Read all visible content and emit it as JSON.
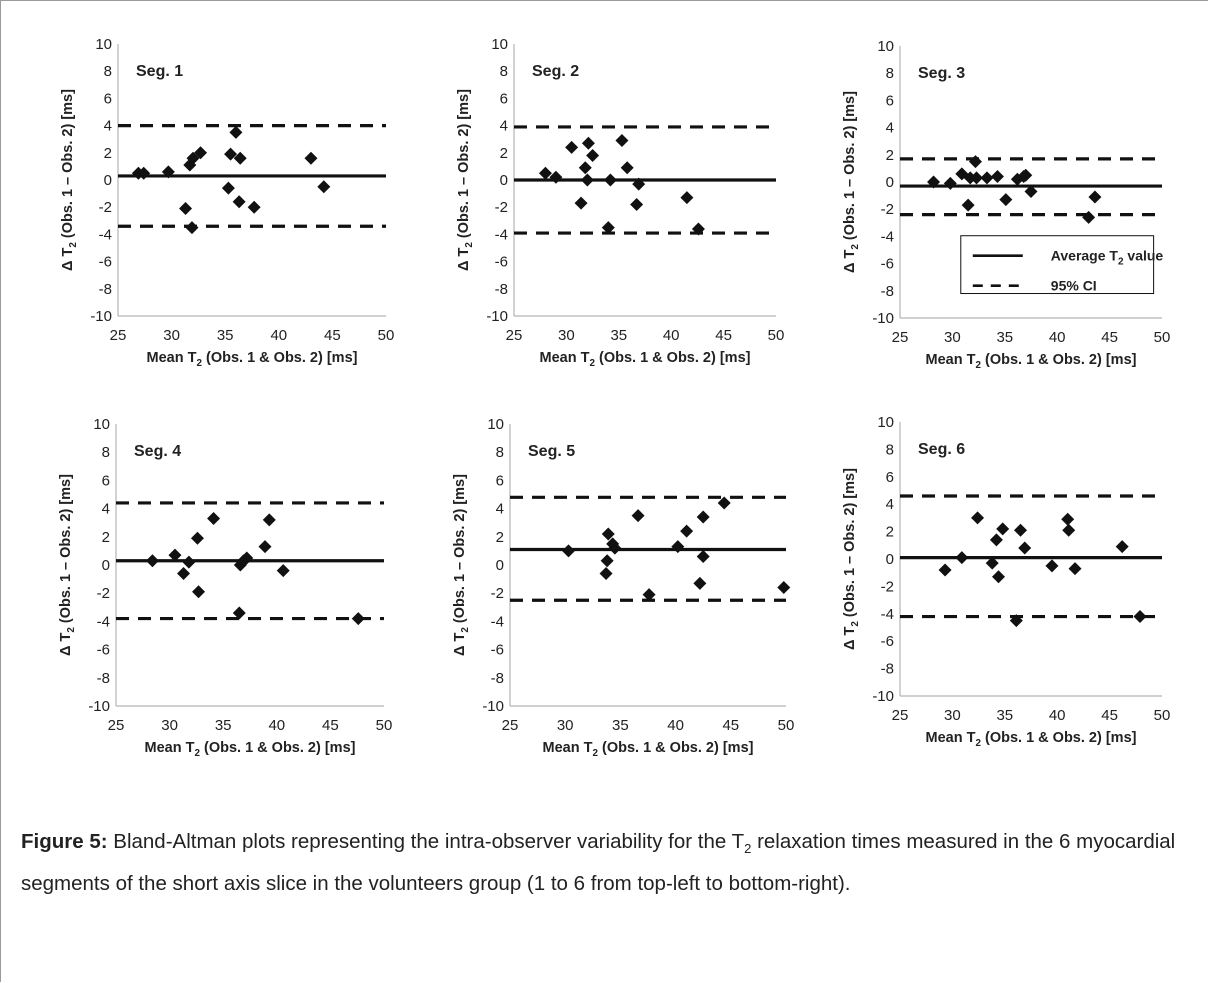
{
  "figure": {
    "caption_label": "Figure 5:",
    "caption_part1": " Bland-Altman plots representing the intra-observer variability for the T",
    "caption_sub": "2",
    "caption_part2": " relaxation times measured in the 6 myocardial segments of the short axis slice in the volunteers group (1 to 6 from top-left to bottom-right)."
  },
  "legend": {
    "items": [
      {
        "label": "Average T",
        "sub": "2",
        "suffix": " value",
        "style": "solid"
      },
      {
        "label": "95% CI",
        "sub": "",
        "suffix": "",
        "style": "dashed"
      }
    ]
  },
  "chart_data": [
    {
      "type": "scatter",
      "title": "Seg. 1",
      "xlabel": "Mean T2 (Obs. 1 & Obs. 2) [ms]",
      "ylabel": "Δ T2 (Obs. 1 – Obs. 2) [ms]",
      "xlim": [
        25,
        50
      ],
      "ylim": [
        -10,
        10
      ],
      "xticks": [
        25,
        30,
        35,
        40,
        45,
        50
      ],
      "yticks": [
        -10,
        -8,
        -6,
        -4,
        -2,
        0,
        2,
        4,
        6,
        8,
        10
      ],
      "mean_line": 0.3,
      "ci_upper": 4.0,
      "ci_lower": -3.4,
      "points": [
        [
          26.9,
          0.5
        ],
        [
          27.4,
          0.5
        ],
        [
          29.7,
          0.6
        ],
        [
          31.3,
          -2.1
        ],
        [
          31.7,
          1.1
        ],
        [
          32.0,
          1.6
        ],
        [
          31.9,
          -3.5
        ],
        [
          32.7,
          2.0
        ],
        [
          35.3,
          -0.6
        ],
        [
          35.5,
          1.9
        ],
        [
          36.0,
          3.5
        ],
        [
          36.3,
          -1.6
        ],
        [
          36.4,
          1.6
        ],
        [
          37.7,
          -2.0
        ],
        [
          43.0,
          1.6
        ],
        [
          44.2,
          -0.5
        ]
      ]
    },
    {
      "type": "scatter",
      "title": "Seg. 2",
      "xlabel": "Mean T2 (Obs. 1 & Obs. 2) [ms]",
      "ylabel": "Δ T2 (Obs. 1 – Obs. 2) [ms]",
      "xlim": [
        25,
        50
      ],
      "ylim": [
        -10,
        10
      ],
      "xticks": [
        25,
        30,
        35,
        40,
        45,
        50
      ],
      "yticks": [
        -10,
        -8,
        -6,
        -4,
        -2,
        0,
        2,
        4,
        6,
        8,
        10
      ],
      "mean_line": 0.0,
      "ci_upper": 3.9,
      "ci_lower": -3.9,
      "points": [
        [
          28.0,
          0.5
        ],
        [
          29.0,
          0.2
        ],
        [
          30.5,
          2.4
        ],
        [
          31.4,
          -1.7
        ],
        [
          31.8,
          0.9
        ],
        [
          32.0,
          0.0
        ],
        [
          32.1,
          2.7
        ],
        [
          32.5,
          1.8
        ],
        [
          34.0,
          -3.5
        ],
        [
          34.2,
          0.0
        ],
        [
          35.3,
          2.9
        ],
        [
          35.8,
          0.9
        ],
        [
          36.7,
          -1.8
        ],
        [
          36.9,
          -0.3
        ],
        [
          41.5,
          -1.3
        ],
        [
          42.6,
          -3.6
        ]
      ]
    },
    {
      "type": "scatter",
      "title": "Seg. 3",
      "xlabel": "Mean T2 (Obs. 1 & Obs. 2) [ms]",
      "ylabel": "Δ T2 (Obs. 1 – Obs. 2) [ms]",
      "xlim": [
        25,
        50
      ],
      "ylim": [
        -10,
        10
      ],
      "xticks": [
        25,
        30,
        35,
        40,
        45,
        50
      ],
      "yticks": [
        -10,
        -8,
        -6,
        -4,
        -2,
        0,
        2,
        4,
        6,
        8,
        10
      ],
      "mean_line": -0.3,
      "ci_upper": 1.7,
      "ci_lower": -2.4,
      "points": [
        [
          28.2,
          0.0
        ],
        [
          29.8,
          -0.1
        ],
        [
          30.9,
          0.6
        ],
        [
          31.5,
          -1.7
        ],
        [
          31.7,
          0.3
        ],
        [
          32.2,
          1.5
        ],
        [
          32.3,
          0.3
        ],
        [
          33.3,
          0.3
        ],
        [
          34.3,
          0.4
        ],
        [
          35.1,
          -1.3
        ],
        [
          36.2,
          0.2
        ],
        [
          36.8,
          0.4
        ],
        [
          37.0,
          0.5
        ],
        [
          37.5,
          -0.7
        ],
        [
          43.0,
          -2.6
        ],
        [
          43.6,
          -1.1
        ]
      ]
    },
    {
      "type": "scatter",
      "title": "Seg. 4",
      "xlabel": "Mean T2 (Obs. 1 & Obs. 2) [ms]",
      "ylabel": "Δ T2 (Obs. 1 – Obs. 2) [ms]",
      "xlim": [
        25,
        50
      ],
      "ylim": [
        -10,
        10
      ],
      "xticks": [
        25,
        30,
        35,
        40,
        45,
        50
      ],
      "yticks": [
        -10,
        -8,
        -6,
        -4,
        -2,
        0,
        2,
        4,
        6,
        8,
        10
      ],
      "mean_line": 0.3,
      "ci_upper": 4.4,
      "ci_lower": -3.8,
      "points": [
        [
          28.4,
          0.3
        ],
        [
          30.5,
          0.7
        ],
        [
          31.3,
          -0.6
        ],
        [
          31.8,
          0.2
        ],
        [
          32.6,
          1.9
        ],
        [
          32.7,
          -1.9
        ],
        [
          34.1,
          3.3
        ],
        [
          36.5,
          -3.4
        ],
        [
          36.6,
          0.0
        ],
        [
          36.9,
          0.3
        ],
        [
          37.2,
          0.5
        ],
        [
          38.9,
          1.3
        ],
        [
          39.3,
          3.2
        ],
        [
          40.6,
          -0.4
        ],
        [
          47.6,
          -3.8
        ]
      ]
    },
    {
      "type": "scatter",
      "title": "Seg. 5",
      "xlabel": "Mean T2 (Obs. 1 & Obs. 2) [ms]",
      "ylabel": "Δ T2 (Obs. 1 – Obs. 2) [ms]",
      "xlim": [
        25,
        50
      ],
      "ylim": [
        -10,
        10
      ],
      "xticks": [
        25,
        30,
        35,
        40,
        45,
        50
      ],
      "yticks": [
        -10,
        -8,
        -6,
        -4,
        -2,
        0,
        2,
        4,
        6,
        8,
        10
      ],
      "mean_line": 1.1,
      "ci_upper": 4.8,
      "ci_lower": -2.5,
      "points": [
        [
          30.3,
          1.0
        ],
        [
          33.7,
          -0.6
        ],
        [
          33.8,
          0.3
        ],
        [
          33.9,
          2.2
        ],
        [
          34.3,
          1.5
        ],
        [
          34.5,
          1.2
        ],
        [
          36.6,
          3.5
        ],
        [
          37.6,
          -2.1
        ],
        [
          40.2,
          1.3
        ],
        [
          41.0,
          2.4
        ],
        [
          42.2,
          -1.3
        ],
        [
          42.5,
          0.6
        ],
        [
          42.5,
          3.4
        ],
        [
          44.4,
          4.4
        ],
        [
          49.8,
          -1.6
        ]
      ]
    },
    {
      "type": "scatter",
      "title": "Seg. 6",
      "xlabel": "Mean T2 (Obs. 1 & Obs. 2) [ms]",
      "ylabel": "Δ T2 (Obs. 1 – Obs. 2) [ms]",
      "xlim": [
        25,
        50
      ],
      "ylim": [
        -10,
        10
      ],
      "xticks": [
        25,
        30,
        35,
        40,
        45,
        50
      ],
      "yticks": [
        -10,
        -8,
        -6,
        -4,
        -2,
        0,
        2,
        4,
        6,
        8,
        10
      ],
      "mean_line": 0.1,
      "ci_upper": 4.6,
      "ci_lower": -4.2,
      "points": [
        [
          29.3,
          -0.8
        ],
        [
          30.9,
          0.1
        ],
        [
          32.4,
          3.0
        ],
        [
          33.8,
          -0.3
        ],
        [
          34.2,
          1.4
        ],
        [
          34.4,
          -1.3
        ],
        [
          34.8,
          2.2
        ],
        [
          36.1,
          -4.5
        ],
        [
          36.5,
          2.1
        ],
        [
          36.9,
          0.8
        ],
        [
          39.5,
          -0.5
        ],
        [
          41.0,
          2.9
        ],
        [
          41.1,
          2.1
        ],
        [
          41.7,
          -0.7
        ],
        [
          46.2,
          0.9
        ],
        [
          47.9,
          -4.2
        ]
      ]
    }
  ]
}
